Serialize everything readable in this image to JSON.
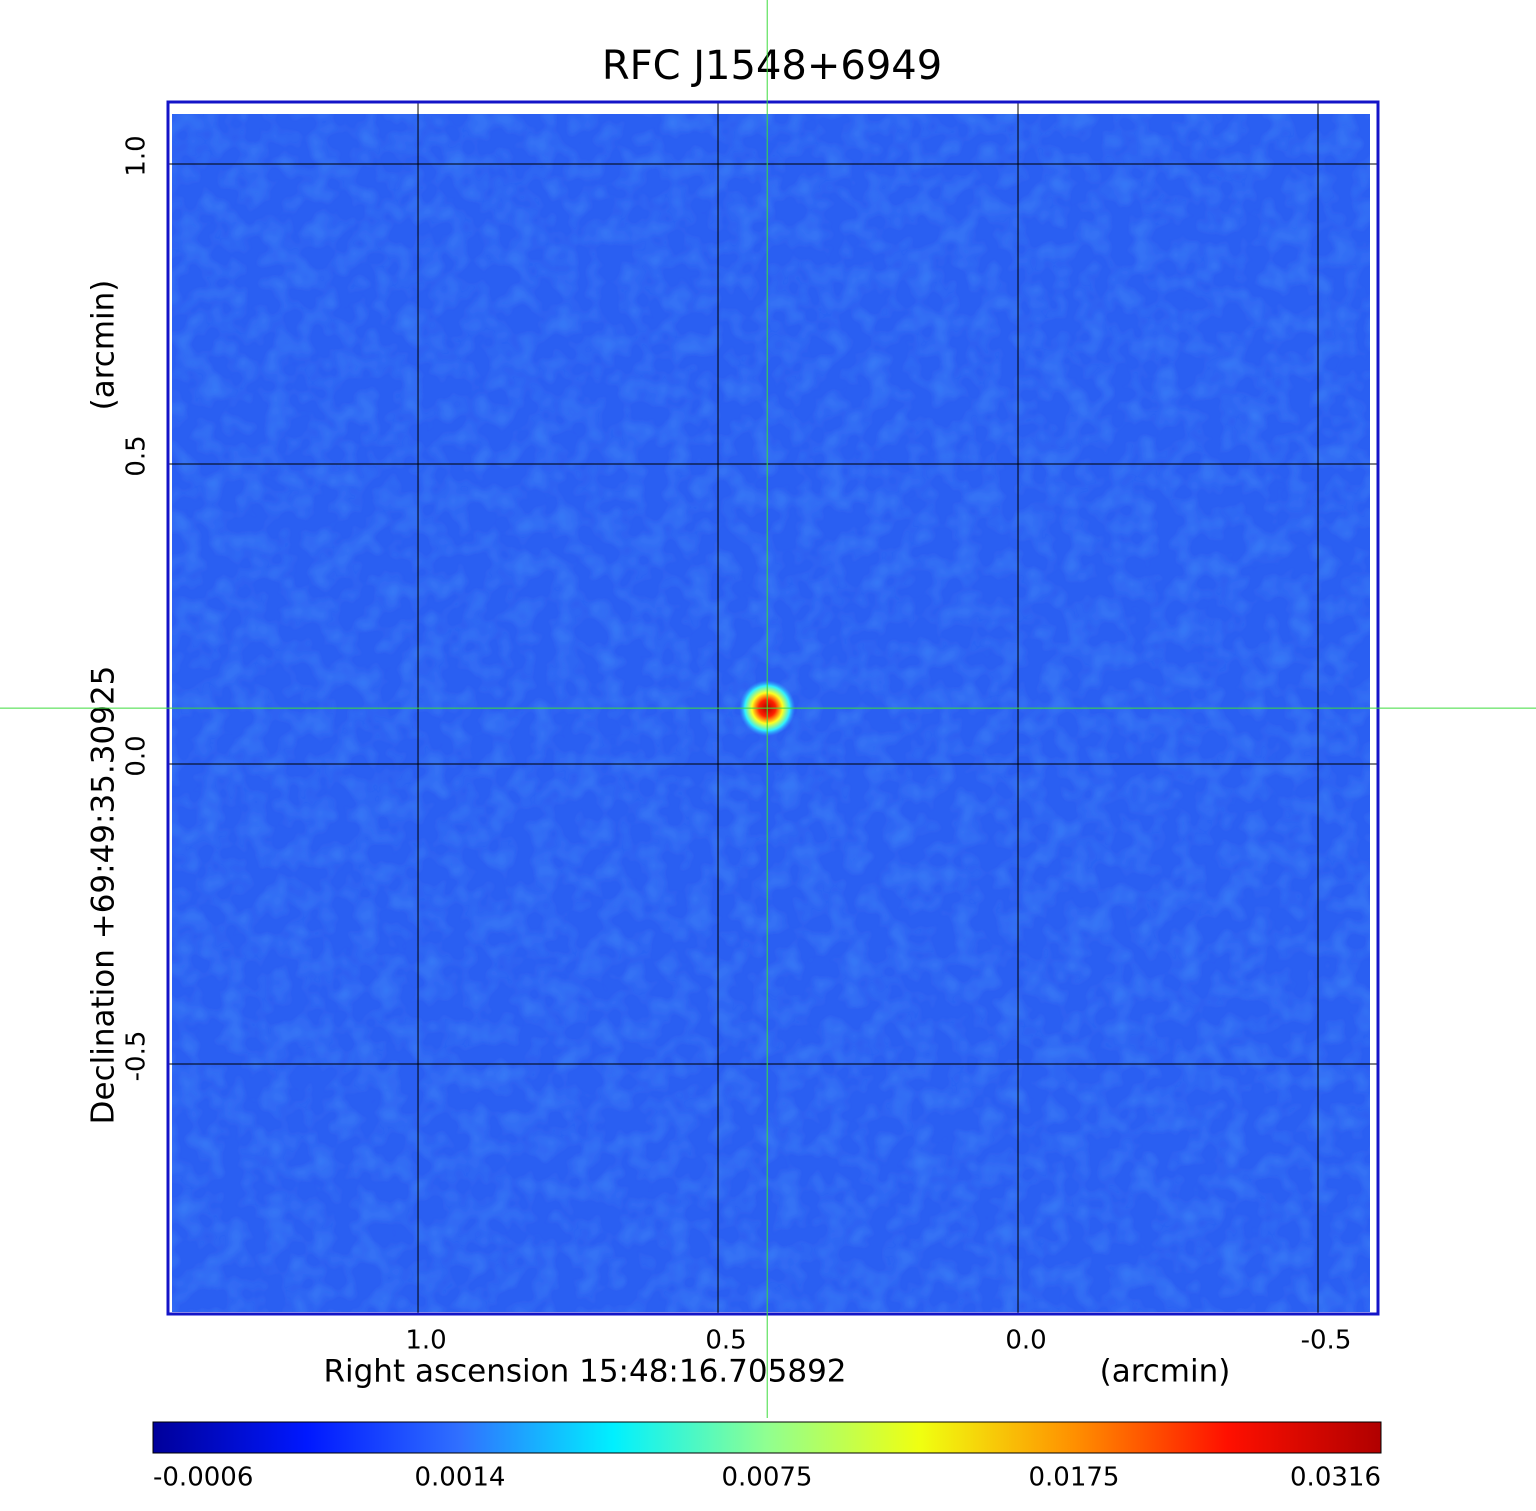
{
  "chart_data": {
    "type": "image",
    "title": "RFC J1548+6949",
    "title_color": "#1a1adb",
    "xlabel": "Right ascension  15:48:16.705892",
    "xunit": "(arcmin)",
    "ylabel": "Declination  +69:49:35.30925",
    "yunit": "(arcmin)",
    "xlim": [
      1.4167,
      -0.6
    ],
    "ylim": [
      -0.9167,
      1.1033
    ],
    "xticks": [
      {
        "value": 1,
        "label": "1.0"
      },
      {
        "value": 0.5,
        "label": "0.5"
      },
      {
        "value": 0,
        "label": "0.0"
      },
      {
        "value": -0.5,
        "label": "-0.5"
      }
    ],
    "yticks": [
      {
        "value": 1,
        "label": "1.0"
      },
      {
        "value": 0.5,
        "label": "0.5"
      },
      {
        "value": 0,
        "label": "0.0"
      },
      {
        "value": -0.5,
        "label": "-0.5"
      }
    ],
    "grid": true,
    "frame_color": "#1414c8",
    "background_color": "#2b5ef2",
    "crosshair": {
      "x": 0.418,
      "y": 0.093,
      "color": "#3ddc3d"
    },
    "source": {
      "x": 0.418,
      "y": 0.093
    },
    "colorbar": {
      "ticks": [
        -0.0006,
        0.0014,
        0.0075,
        0.0175,
        0.0316
      ],
      "colors": [
        "#00009a",
        "#0018ff",
        "#3070ff",
        "#00f0ff",
        "#90ff90",
        "#f0ff10",
        "#ff9000",
        "#ff1000",
        "#b00000"
      ]
    }
  }
}
